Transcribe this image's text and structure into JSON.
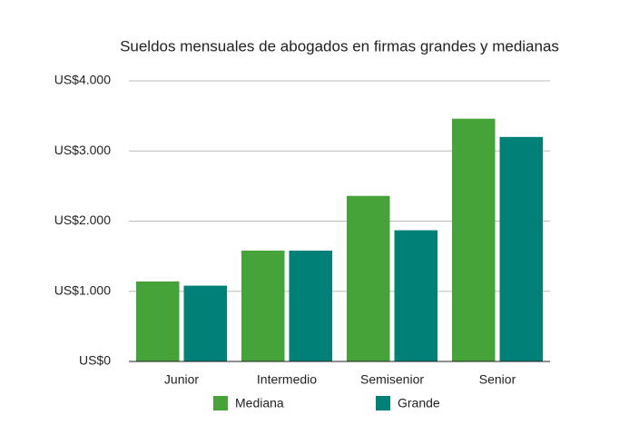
{
  "chart_data": {
    "type": "bar",
    "title": "Sueldos mensuales de abogados en firmas grandes y medianas",
    "categories": [
      "Junior",
      "Intermedio",
      "Semisenior",
      "Senior"
    ],
    "series": [
      {
        "name": "Mediana",
        "color": "#45a33a",
        "values": [
          1140,
          1580,
          2360,
          3460
        ]
      },
      {
        "name": "Grande",
        "color": "#008076",
        "values": [
          1080,
          1580,
          1870,
          3200
        ]
      }
    ],
    "ylim": [
      0,
      4000
    ],
    "yticks": [
      {
        "value": 0,
        "label": "US$0"
      },
      {
        "value": 1000,
        "label": "US$1.000"
      },
      {
        "value": 2000,
        "label": "US$2.000"
      },
      {
        "value": 3000,
        "label": "US$3.000"
      },
      {
        "value": 4000,
        "label": "US$4.000"
      }
    ],
    "grid": true,
    "legend": "bottom"
  }
}
